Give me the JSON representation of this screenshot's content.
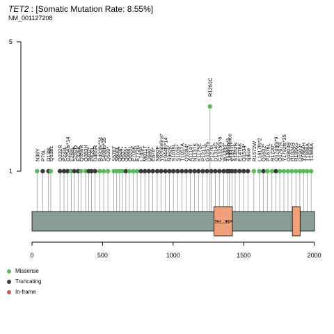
{
  "header": {
    "gene": "TET2",
    "title_rest": " : [Somatic Mutation Rate: 8.55%]",
    "subtitle": "NM_001127208"
  },
  "colors": {
    "missense": "#5cb85c",
    "truncating": "#3a3a3a",
    "inframe": "#c0634a",
    "protein_bar": "#8a9e99",
    "domain_fill": "#f0a07a"
  },
  "legend": [
    {
      "label": "Missense",
      "color": "#5cb85c"
    },
    {
      "label": "Truncating",
      "color": "#3a3a3a"
    },
    {
      "label": "In-frame",
      "color": "#c0634a"
    }
  ],
  "chart_data": {
    "type": "lollipop",
    "title": "TET2 : [Somatic Mutation Rate: 8.55%]",
    "subtitle": "NM_001127208",
    "xlim": [
      0,
      2002
    ],
    "ylim": [
      0,
      5
    ],
    "x_ticks": [
      0,
      500,
      1000,
      1500,
      2000
    ],
    "y_ticks": [
      1,
      5
    ],
    "protein_length": 2002,
    "domains": [
      {
        "name": "Tet_JBP",
        "start": 1290,
        "end": 1420
      },
      {
        "name": "",
        "start": 1845,
        "end": 1900
      }
    ],
    "mutations": [
      {
        "pos": 36,
        "count": 1,
        "class": "missense",
        "label": "N36Y"
      },
      {
        "pos": 76,
        "count": 1,
        "class": "truncating",
        "label": "P76L"
      },
      {
        "pos": 117,
        "count": 1,
        "class": "truncating",
        "label": "D138L"
      },
      {
        "pos": 133,
        "count": 1,
        "class": "missense",
        "label": "Q138L"
      },
      {
        "pos": 198,
        "count": 1,
        "class": "truncating",
        "label": "Q232R"
      },
      {
        "pos": 227,
        "count": 1,
        "class": "truncating",
        "label": "P233L"
      },
      {
        "pos": 252,
        "count": 1,
        "class": "truncating",
        "label": "G254fs*14"
      },
      {
        "pos": 278,
        "count": 1,
        "class": "missense",
        "label": "F268L"
      },
      {
        "pos": 300,
        "count": 1,
        "class": "truncating",
        "label": "S282fs"
      },
      {
        "pos": 327,
        "count": 1,
        "class": "truncating",
        "label": "E326K"
      },
      {
        "pos": 347,
        "count": 1,
        "class": "missense",
        "label": "Q356R"
      },
      {
        "pos": 380,
        "count": 1,
        "class": "missense",
        "label": "Q383H"
      },
      {
        "pos": 402,
        "count": 1,
        "class": "truncating",
        "label": "S402*"
      },
      {
        "pos": 421,
        "count": 1,
        "class": "truncating",
        "label": "P420L"
      },
      {
        "pos": 447,
        "count": 1,
        "class": "truncating",
        "label": "D465R"
      },
      {
        "pos": 480,
        "count": 1,
        "class": "missense",
        "label": "R493fs*34"
      },
      {
        "pos": 508,
        "count": 1,
        "class": "missense",
        "label": "S498fs*35"
      },
      {
        "pos": 538,
        "count": 1,
        "class": "missense",
        "label": "Q539*"
      },
      {
        "pos": 580,
        "count": 1,
        "class": "missense",
        "label": "S576T"
      },
      {
        "pos": 600,
        "count": 1,
        "class": "missense",
        "label": "S600L"
      },
      {
        "pos": 620,
        "count": 1,
        "class": "missense",
        "label": "Q624*"
      },
      {
        "pos": 640,
        "count": 1,
        "class": "missense",
        "label": "Q637*"
      },
      {
        "pos": 665,
        "count": 1,
        "class": "truncating",
        "label": "Q655*"
      },
      {
        "pos": 690,
        "count": 1,
        "class": "missense",
        "label": "Q699L"
      },
      {
        "pos": 718,
        "count": 1,
        "class": "missense",
        "label": "E709K"
      },
      {
        "pos": 745,
        "count": 1,
        "class": "missense",
        "label": "E772G"
      },
      {
        "pos": 772,
        "count": 1,
        "class": "truncating",
        "label": "L785P"
      },
      {
        "pos": 800,
        "count": 1,
        "class": "truncating",
        "label": "M811T"
      },
      {
        "pos": 828,
        "count": 1,
        "class": "truncating",
        "label": "Q840*"
      },
      {
        "pos": 856,
        "count": 1,
        "class": "truncating",
        "label": "E878*"
      },
      {
        "pos": 887,
        "count": 1,
        "class": "truncating",
        "label": "S892F"
      },
      {
        "pos": 915,
        "count": 1,
        "class": "truncating",
        "label": "Y920delins*"
      },
      {
        "pos": 945,
        "count": 1,
        "class": "truncating",
        "label": "E944fs*14"
      },
      {
        "pos": 974,
        "count": 1,
        "class": "truncating",
        "label": "N962K"
      },
      {
        "pos": 1002,
        "count": 1,
        "class": "truncating",
        "label": "S1015L"
      },
      {
        "pos": 1032,
        "count": 1,
        "class": "truncating",
        "label": "S1039*"
      },
      {
        "pos": 1062,
        "count": 1,
        "class": "truncating",
        "label": "T1057A"
      },
      {
        "pos": 1092,
        "count": 1,
        "class": "truncating",
        "label": "Q1084*"
      },
      {
        "pos": 1122,
        "count": 1,
        "class": "truncating",
        "label": "A1114T"
      },
      {
        "pos": 1152,
        "count": 1,
        "class": "truncating",
        "label": "N1137K"
      },
      {
        "pos": 1180,
        "count": 1,
        "class": "truncating",
        "label": "K1175E"
      },
      {
        "pos": 1210,
        "count": 1,
        "class": "truncating",
        "label": "P1217L"
      },
      {
        "pos": 1240,
        "count": 1,
        "class": "truncating",
        "label": "G1257fs"
      },
      {
        "pos": 1261,
        "count": 3,
        "class": "missense",
        "label": "R1261C"
      },
      {
        "pos": 1270,
        "count": 1,
        "class": "truncating",
        "label": "P1270L"
      },
      {
        "pos": 1299,
        "count": 1,
        "class": "truncating",
        "label": "D1314G"
      },
      {
        "pos": 1328,
        "count": 1,
        "class": "truncating",
        "label": "G1325fs*6"
      },
      {
        "pos": 1358,
        "count": 1,
        "class": "truncating",
        "label": "W1364*"
      },
      {
        "pos": 1385,
        "count": 1,
        "class": "truncating",
        "label": "T1386fs*1"
      },
      {
        "pos": 1399,
        "count": 1,
        "class": "truncating",
        "label": "1399_splice"
      },
      {
        "pos": 1417,
        "count": 1,
        "class": "truncating",
        "label": "V1417I"
      },
      {
        "pos": 1440,
        "count": 1,
        "class": "truncating",
        "label": "S1452fs"
      },
      {
        "pos": 1470,
        "count": 1,
        "class": "truncating",
        "label": "E1476K"
      },
      {
        "pos": 1500,
        "count": 1,
        "class": "truncating",
        "label": "Q1534*"
      },
      {
        "pos": 1530,
        "count": 1,
        "class": "truncating",
        "label": "splice"
      },
      {
        "pos": 1572,
        "count": 1,
        "class": "missense",
        "label": "R1572W"
      },
      {
        "pos": 1610,
        "count": 1,
        "class": "missense",
        "label": "L1617fs*2"
      },
      {
        "pos": 1640,
        "count": 1,
        "class": "truncating",
        "label": "Q1632*"
      },
      {
        "pos": 1668,
        "count": 1,
        "class": "missense",
        "label": "P1676L"
      },
      {
        "pos": 1700,
        "count": 1,
        "class": "missense",
        "label": "R1720*"
      },
      {
        "pos": 1728,
        "count": 1,
        "class": "truncating",
        "label": "Q1749fs*9"
      },
      {
        "pos": 1756,
        "count": 1,
        "class": "missense",
        "label": "Q1767R"
      },
      {
        "pos": 1785,
        "count": 1,
        "class": "missense",
        "label": "Y1792fs*35"
      },
      {
        "pos": 1814,
        "count": 1,
        "class": "missense",
        "label": "Q1803R"
      },
      {
        "pos": 1842,
        "count": 1,
        "class": "missense",
        "label": "H1834R"
      },
      {
        "pos": 1870,
        "count": 1,
        "class": "missense",
        "label": "R1896S"
      },
      {
        "pos": 1898,
        "count": 1,
        "class": "missense",
        "label": "Q1903*"
      },
      {
        "pos": 1924,
        "count": 1,
        "class": "missense",
        "label": "Y1864H"
      },
      {
        "pos": 1950,
        "count": 1,
        "class": "missense",
        "label": "T1988A"
      },
      {
        "pos": 1978,
        "count": 1,
        "class": "missense",
        "label": "T1988A"
      }
    ]
  }
}
